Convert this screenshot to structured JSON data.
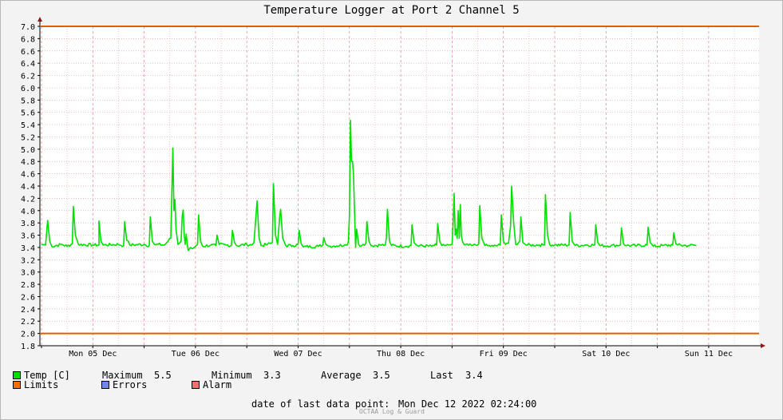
{
  "chart_data": {
    "type": "line",
    "title": "Temperature Logger at Port 2 Channel 5",
    "ylim": [
      1.8,
      7.0
    ],
    "y_ticks": [
      "7.0",
      "6.8",
      "6.6",
      "6.4",
      "6.2",
      "6.0",
      "5.8",
      "5.6",
      "5.4",
      "5.2",
      "5.0",
      "4.8",
      "4.6",
      "4.4",
      "4.2",
      "4.0",
      "3.8",
      "3.6",
      "3.4",
      "3.2",
      "3.0",
      "2.8",
      "2.6",
      "2.4",
      "2.2",
      "2.0",
      "1.8"
    ],
    "x_categories": [
      "Mon 05 Dec",
      "Tue 06 Dec",
      "Wed 07 Dec",
      "Thu 08 Dec",
      "Fri 09 Dec",
      "Sat 10 Dec",
      "Sun 11 Dec"
    ],
    "grid": true,
    "limits": {
      "upper": 7.0,
      "lower": 2.0,
      "color": "#e06000"
    },
    "series": [
      {
        "name": "Temp [C]",
        "color": "#00e000",
        "baseline": 3.43,
        "points": [
          [
            0.0,
            3.45
          ],
          [
            0.04,
            3.44
          ],
          [
            0.06,
            3.84
          ],
          [
            0.08,
            3.5
          ],
          [
            0.1,
            3.42
          ],
          [
            0.2,
            3.45
          ],
          [
            0.25,
            3.42
          ],
          [
            0.3,
            3.46
          ],
          [
            0.31,
            4.07
          ],
          [
            0.33,
            3.6
          ],
          [
            0.36,
            3.45
          ],
          [
            0.5,
            3.44
          ],
          [
            0.56,
            3.44
          ],
          [
            0.56,
            3.83
          ],
          [
            0.58,
            3.5
          ],
          [
            0.6,
            3.44
          ],
          [
            0.75,
            3.45
          ],
          [
            0.8,
            3.43
          ],
          [
            0.81,
            3.82
          ],
          [
            0.83,
            3.52
          ],
          [
            0.86,
            3.44
          ],
          [
            1.0,
            3.45
          ],
          [
            1.05,
            3.43
          ],
          [
            1.06,
            3.9
          ],
          [
            1.08,
            3.5
          ],
          [
            1.1,
            3.45
          ],
          [
            1.2,
            3.44
          ],
          [
            1.22,
            3.48
          ],
          [
            1.26,
            3.55
          ],
          [
            1.27,
            4.3
          ],
          [
            1.28,
            5.02
          ],
          [
            1.29,
            4.0
          ],
          [
            1.3,
            4.18
          ],
          [
            1.31,
            3.7
          ],
          [
            1.33,
            3.45
          ],
          [
            1.36,
            3.5
          ],
          [
            1.37,
            3.9
          ],
          [
            1.38,
            4.01
          ],
          [
            1.39,
            3.6
          ],
          [
            1.4,
            3.45
          ],
          [
            1.41,
            3.62
          ],
          [
            1.42,
            3.45
          ],
          [
            1.43,
            3.35
          ],
          [
            1.45,
            3.4
          ],
          [
            1.47,
            3.38
          ],
          [
            1.5,
            3.42
          ],
          [
            1.52,
            3.45
          ],
          [
            1.53,
            3.93
          ],
          [
            1.55,
            3.5
          ],
          [
            1.57,
            3.42
          ],
          [
            1.65,
            3.44
          ],
          [
            1.7,
            3.43
          ],
          [
            1.71,
            3.6
          ],
          [
            1.73,
            3.45
          ],
          [
            1.8,
            3.44
          ],
          [
            1.85,
            3.43
          ],
          [
            1.86,
            3.68
          ],
          [
            1.88,
            3.48
          ],
          [
            1.9,
            3.43
          ],
          [
            2.0,
            3.45
          ],
          [
            2.05,
            3.44
          ],
          [
            2.07,
            3.48
          ],
          [
            2.1,
            4.16
          ],
          [
            2.12,
            3.55
          ],
          [
            2.14,
            3.43
          ],
          [
            2.2,
            3.45
          ],
          [
            2.25,
            3.48
          ],
          [
            2.26,
            4.44
          ],
          [
            2.28,
            3.6
          ],
          [
            2.3,
            3.45
          ],
          [
            2.32,
            3.9
          ],
          [
            2.33,
            4.02
          ],
          [
            2.35,
            3.55
          ],
          [
            2.38,
            3.43
          ],
          [
            2.45,
            3.43
          ],
          [
            2.5,
            3.45
          ],
          [
            2.51,
            3.68
          ],
          [
            2.53,
            3.46
          ],
          [
            2.55,
            3.41
          ],
          [
            2.7,
            3.42
          ],
          [
            2.74,
            3.44
          ],
          [
            2.75,
            3.56
          ],
          [
            2.77,
            3.45
          ],
          [
            2.8,
            3.42
          ],
          [
            2.95,
            3.44
          ],
          [
            2.98,
            3.44
          ],
          [
            2.99,
            3.5
          ],
          [
            3.0,
            3.93
          ],
          [
            3.01,
            5.47
          ],
          [
            3.02,
            4.8
          ],
          [
            3.03,
            4.8
          ],
          [
            3.04,
            4.58
          ],
          [
            3.06,
            3.4
          ],
          [
            3.07,
            3.7
          ],
          [
            3.09,
            3.45
          ],
          [
            3.12,
            3.43
          ],
          [
            3.16,
            3.47
          ],
          [
            3.17,
            3.82
          ],
          [
            3.19,
            3.5
          ],
          [
            3.21,
            3.43
          ],
          [
            3.3,
            3.44
          ],
          [
            3.35,
            3.44
          ],
          [
            3.36,
            3.56
          ],
          [
            3.37,
            4.02
          ],
          [
            3.39,
            3.5
          ],
          [
            3.41,
            3.43
          ],
          [
            3.55,
            3.42
          ],
          [
            3.6,
            3.43
          ],
          [
            3.61,
            3.77
          ],
          [
            3.63,
            3.48
          ],
          [
            3.66,
            3.43
          ],
          [
            3.8,
            3.42
          ],
          [
            3.85,
            3.44
          ],
          [
            3.86,
            3.79
          ],
          [
            3.88,
            3.5
          ],
          [
            3.9,
            3.43
          ],
          [
            3.97,
            3.44
          ],
          [
            4.0,
            3.45
          ],
          [
            4.01,
            3.8
          ],
          [
            4.02,
            4.28
          ],
          [
            4.03,
            3.6
          ],
          [
            4.04,
            3.7
          ],
          [
            4.05,
            3.55
          ],
          [
            4.06,
            4.0
          ],
          [
            4.07,
            3.55
          ],
          [
            4.08,
            4.1
          ],
          [
            4.09,
            3.6
          ],
          [
            4.1,
            3.5
          ],
          [
            4.12,
            3.44
          ],
          [
            4.2,
            3.43
          ],
          [
            4.26,
            3.46
          ],
          [
            4.27,
            4.08
          ],
          [
            4.29,
            3.55
          ],
          [
            4.32,
            3.43
          ],
          [
            4.4,
            3.42
          ],
          [
            4.47,
            3.44
          ],
          [
            4.48,
            3.93
          ],
          [
            4.5,
            3.5
          ],
          [
            4.52,
            3.45
          ],
          [
            4.55,
            3.47
          ],
          [
            4.57,
            3.75
          ],
          [
            4.58,
            4.4
          ],
          [
            4.6,
            3.8
          ],
          [
            4.62,
            3.45
          ],
          [
            4.66,
            3.5
          ],
          [
            4.67,
            3.9
          ],
          [
            4.69,
            3.48
          ],
          [
            4.72,
            3.44
          ],
          [
            4.85,
            3.44
          ],
          [
            4.9,
            3.44
          ],
          [
            4.91,
            4.26
          ],
          [
            4.93,
            3.6
          ],
          [
            4.95,
            3.45
          ],
          [
            5.0,
            3.44
          ],
          [
            5.14,
            3.44
          ],
          [
            5.15,
            3.97
          ],
          [
            5.17,
            3.5
          ],
          [
            5.2,
            3.43
          ],
          [
            5.3,
            3.44
          ],
          [
            5.39,
            3.44
          ],
          [
            5.4,
            3.77
          ],
          [
            5.42,
            3.48
          ],
          [
            5.44,
            3.43
          ],
          [
            5.55,
            3.43
          ],
          [
            5.64,
            3.44
          ],
          [
            5.65,
            3.72
          ],
          [
            5.67,
            3.46
          ],
          [
            5.7,
            3.43
          ],
          [
            5.8,
            3.43
          ],
          [
            5.9,
            3.44
          ],
          [
            5.91,
            3.73
          ],
          [
            5.93,
            3.48
          ],
          [
            5.96,
            3.42
          ],
          [
            6.05,
            3.43
          ],
          [
            6.15,
            3.44
          ],
          [
            6.16,
            3.64
          ],
          [
            6.18,
            3.46
          ],
          [
            6.2,
            3.44
          ],
          [
            6.3,
            3.43
          ],
          [
            6.35,
            3.44
          ],
          [
            6.38,
            3.43
          ]
        ]
      }
    ],
    "legend": {
      "temp_label": "Temp [C]",
      "limits_label": "Limits",
      "errors_label": "Errors",
      "alarm_label": "Alarm",
      "temp_color": "#00e000",
      "limits_color": "#f07000",
      "errors_color": "#6f86f0",
      "alarm_color": "#f07070"
    },
    "stats": {
      "maximum_label": "Maximum",
      "maximum": "5.5",
      "minimum_label": "Minimum",
      "minimum": "3.3",
      "average_label": "Average",
      "average": "3.5",
      "last_label": "Last",
      "last": "3.4"
    },
    "footer": {
      "last_point_label": "date of last data point:",
      "last_point_value": "Mon Dec 12 2022 02:24:00",
      "credit": "OCTAA Log & Guard"
    }
  }
}
